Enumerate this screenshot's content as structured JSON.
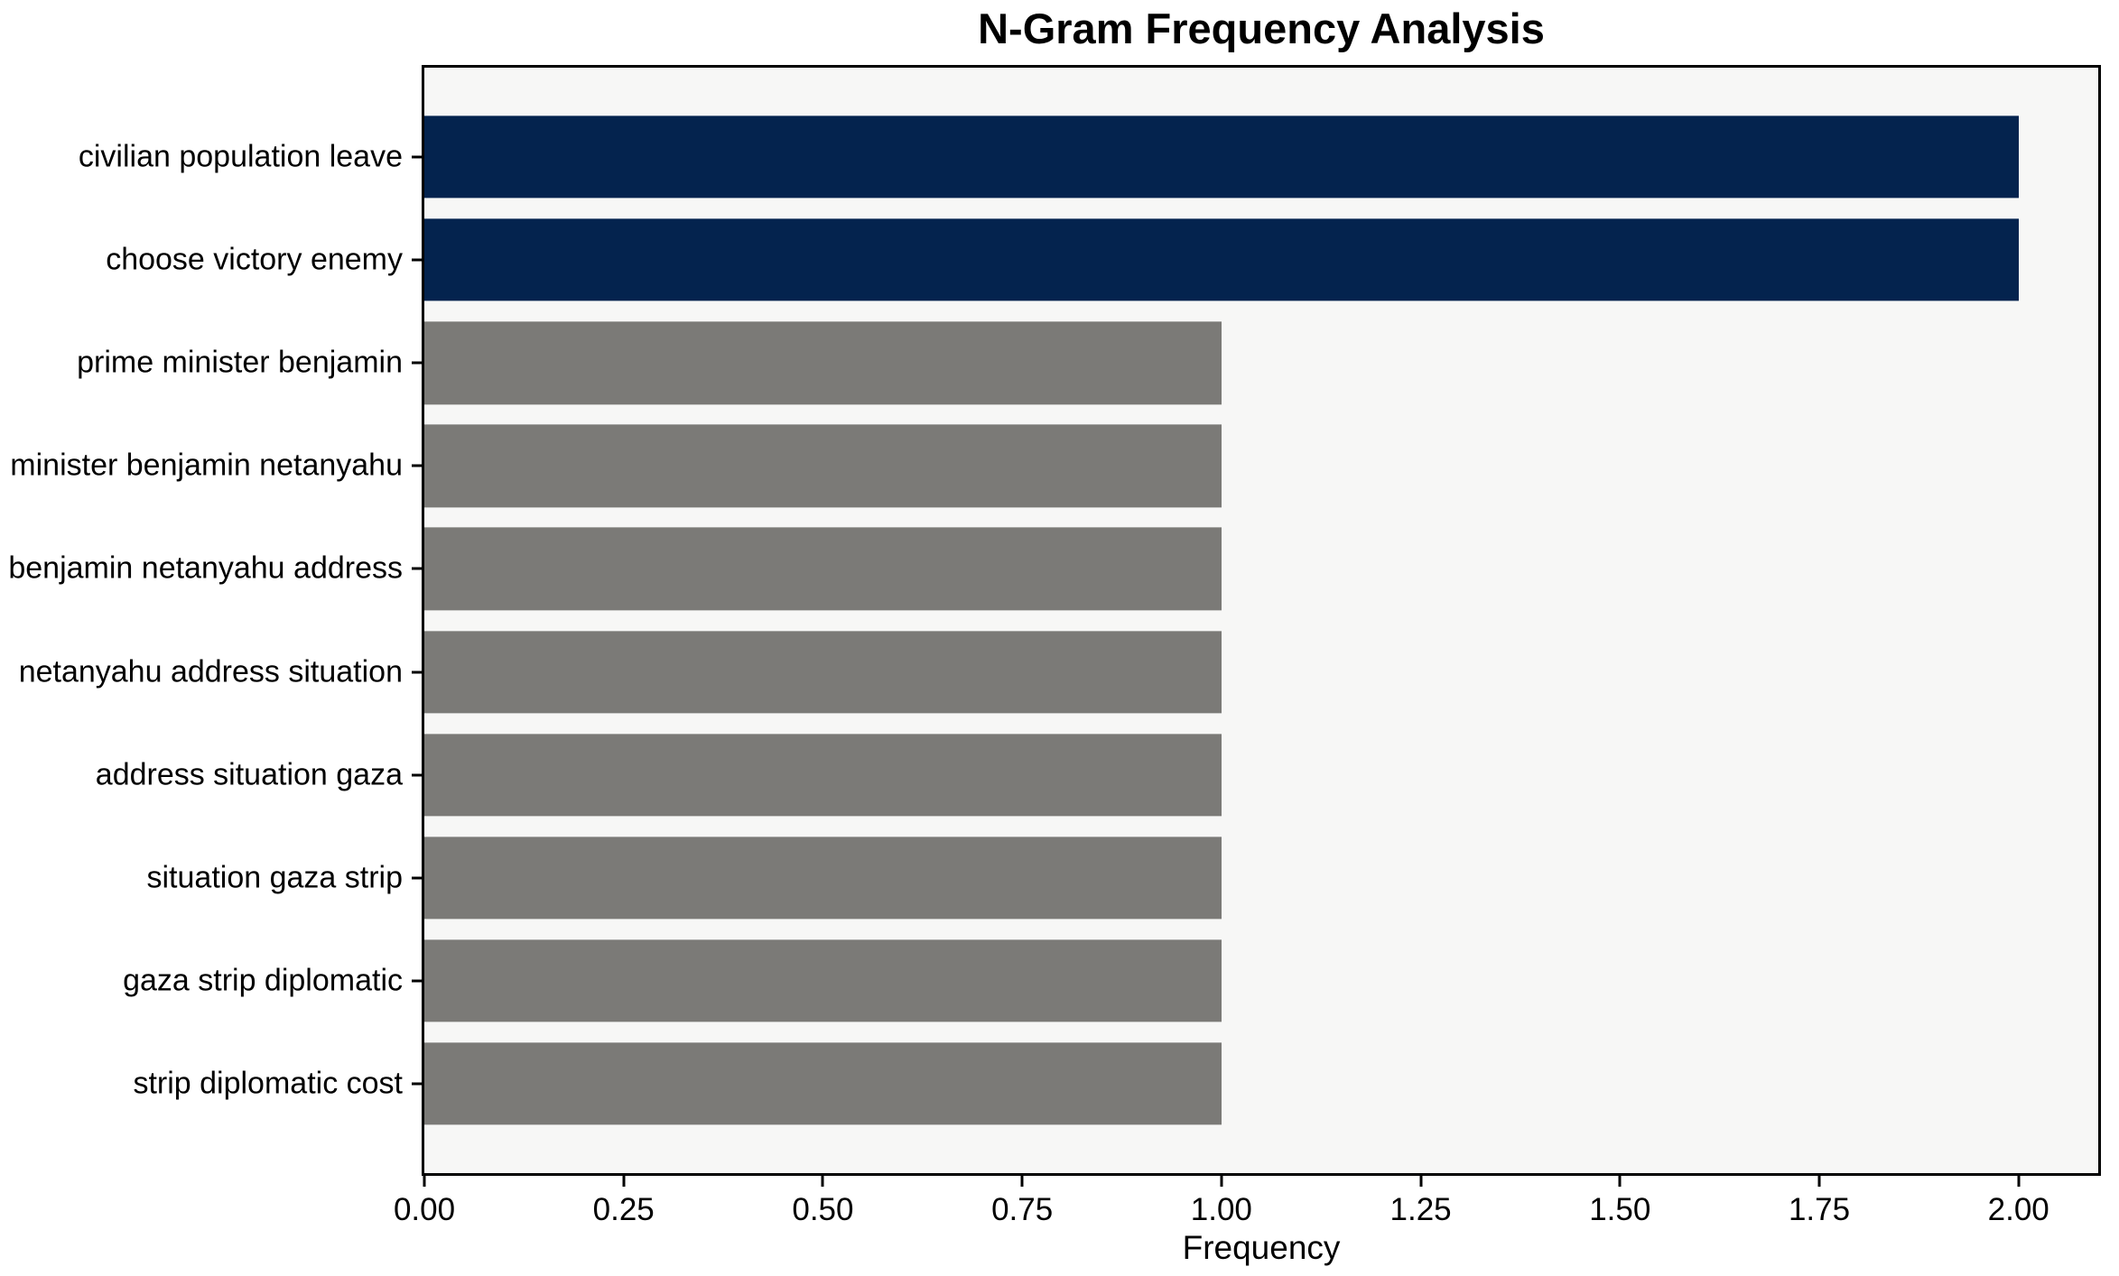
{
  "chart_data": {
    "type": "bar",
    "orientation": "horizontal",
    "title": "N-Gram Frequency Analysis",
    "xlabel": "Frequency",
    "ylabel": "",
    "categories": [
      "civilian population leave",
      "choose victory enemy",
      "prime minister benjamin",
      "minister benjamin netanyahu",
      "benjamin netanyahu address",
      "netanyahu address situation",
      "address situation gaza",
      "situation gaza strip",
      "gaza strip diplomatic",
      "strip diplomatic cost"
    ],
    "values": [
      2,
      2,
      1,
      1,
      1,
      1,
      1,
      1,
      1,
      1
    ],
    "bar_colors": [
      "#04234e",
      "#04234e",
      "#7b7a77",
      "#7b7a77",
      "#7b7a77",
      "#7b7a77",
      "#7b7a77",
      "#7b7a77",
      "#7b7a77",
      "#7b7a77"
    ],
    "xlim": [
      0,
      2.1
    ],
    "xticks": [
      {
        "value": 0.0,
        "label": "0.00"
      },
      {
        "value": 0.25,
        "label": "0.25"
      },
      {
        "value": 0.5,
        "label": "0.50"
      },
      {
        "value": 0.75,
        "label": "0.75"
      },
      {
        "value": 1.0,
        "label": "1.00"
      },
      {
        "value": 1.25,
        "label": "1.25"
      },
      {
        "value": 1.5,
        "label": "1.50"
      },
      {
        "value": 1.75,
        "label": "1.75"
      },
      {
        "value": 2.0,
        "label": "2.00"
      }
    ],
    "grid": false,
    "legend": false,
    "colors": {
      "highlight_bar": "#04234e",
      "base_bar": "#7b7a77",
      "plot_background": "#f7f7f6",
      "figure_background": "#ffffff",
      "axis": "#000000",
      "text": "#000000"
    }
  }
}
